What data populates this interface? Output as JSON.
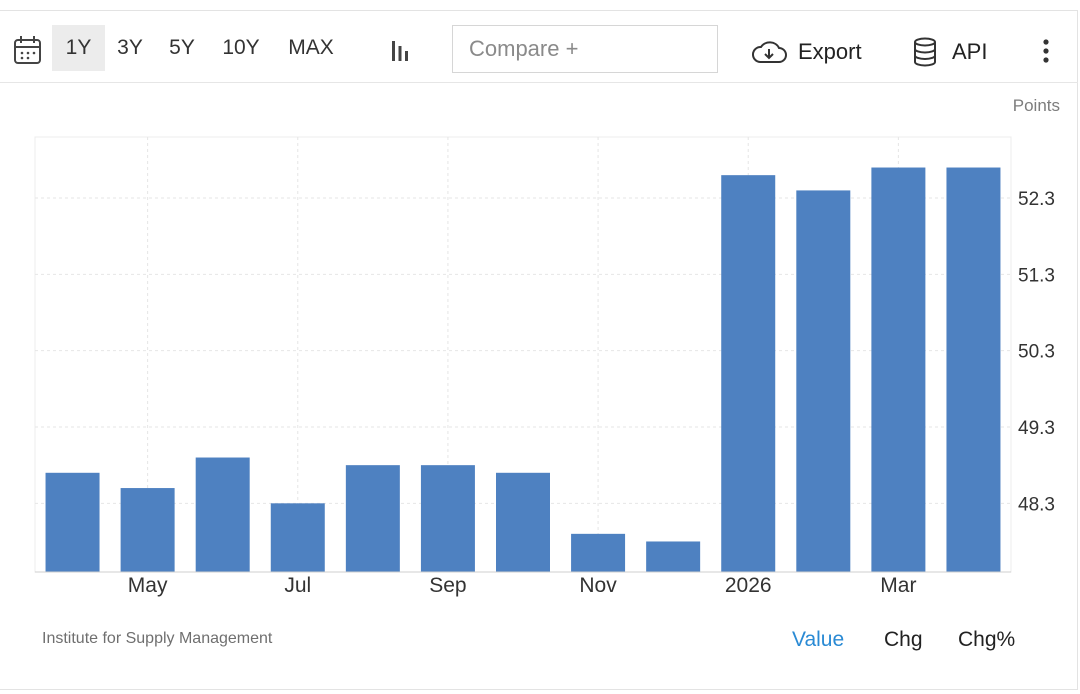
{
  "toolbar": {
    "ranges": [
      "1Y",
      "3Y",
      "5Y",
      "10Y",
      "MAX"
    ],
    "active_range": "1Y",
    "compare_placeholder": "Compare +",
    "export_label": "Export",
    "api_label": "API",
    "icons": [
      "calendar-icon",
      "bar-chart-icon",
      "cloud-download-icon",
      "database-icon",
      "more-vert-icon"
    ]
  },
  "chart_data": {
    "type": "bar",
    "unit": "Points",
    "categories": [
      "Apr",
      "May",
      "Jun",
      "Jul",
      "Aug",
      "Sep",
      "Oct",
      "Nov",
      "Dec",
      "2026",
      "Feb",
      "Mar",
      "Apr"
    ],
    "x_tick_labels": [
      "May",
      "Jul",
      "Sep",
      "Nov",
      "2026",
      "Mar"
    ],
    "series": [
      {
        "values": [
          48.7,
          48.5,
          48.9,
          48.3,
          48.8,
          48.8,
          48.7,
          47.9,
          47.8,
          52.6,
          52.4,
          52.7,
          52.7
        ]
      }
    ],
    "ylim": [
      47.4,
      53.1
    ],
    "y_ticks": [
      48.3,
      49.3,
      50.3,
      51.3,
      52.3
    ],
    "y_axis_side": "right",
    "grid": true,
    "bar_color": "#4e81c1"
  },
  "footer": {
    "source": "Institute for Supply Management",
    "tabs": [
      "Value",
      "Chg",
      "Chg%"
    ],
    "active_tab": "Value",
    "active_color": "#2a8ad4"
  }
}
